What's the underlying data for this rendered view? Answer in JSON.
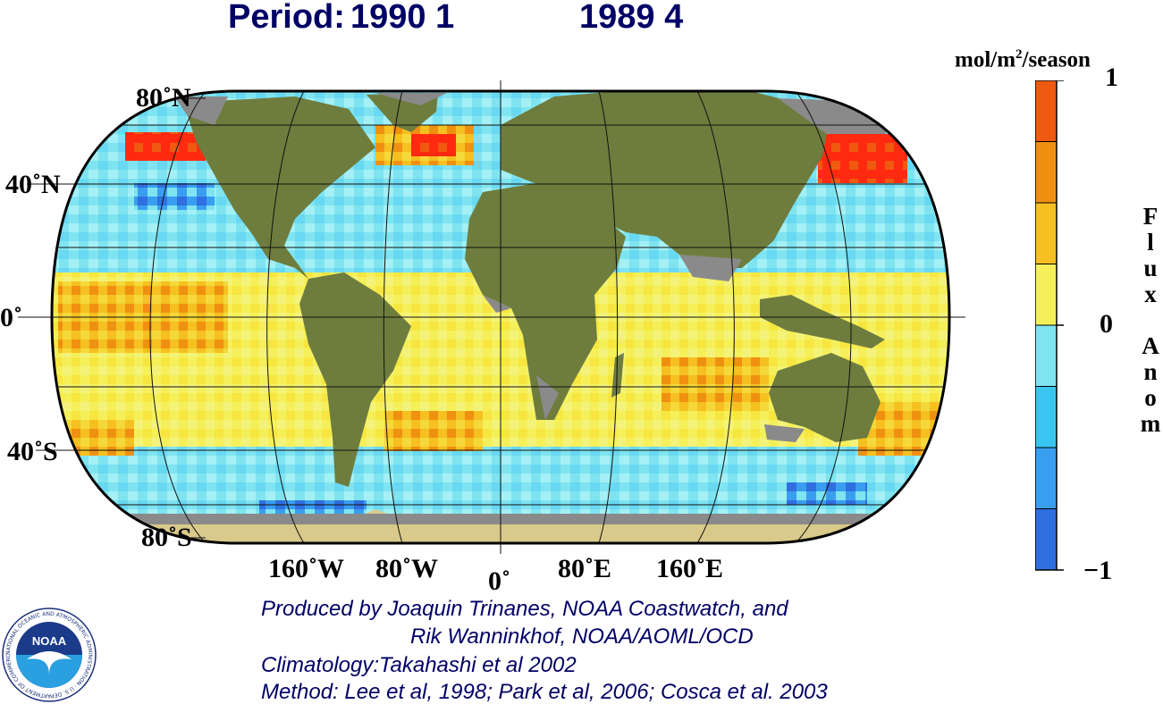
{
  "title": {
    "label": "Period:",
    "period_start": "1990 1",
    "period_end": "1989 4"
  },
  "map": {
    "lat_labels": [
      "80˚N",
      "40˚N",
      "0˚",
      "40˚S",
      "80˚S"
    ],
    "lon_labels": [
      "160˚W",
      "80˚W",
      "0˚",
      "80˚E",
      "160˚E"
    ],
    "colors": {
      "ocean_pos": "#f5f05a",
      "ocean_neg": "#7fe4f0",
      "land": "#6e7d3e",
      "ice": "#d9c98a",
      "missing": "#8a8a8a",
      "hot": "#ff2a10",
      "cold": "#2f6fe0"
    }
  },
  "colorbar": {
    "unit_prefix": "mol/m",
    "unit_superscript": "2",
    "unit_suffix": "/season",
    "max_label": "1",
    "mid_label": "0",
    "min_label": "−1",
    "axis_title": [
      "F",
      "l",
      "u",
      "x",
      "",
      "A",
      "n",
      "o",
      "m"
    ],
    "colors": [
      "#2f6fe0",
      "#3a9ef0",
      "#38c6f0",
      "#7fe4f0",
      "#f5f05a",
      "#f5c020",
      "#f09010",
      "#f05a10"
    ]
  },
  "credits": {
    "line1": "Produced by Joaquin Trinanes, NOAA Coastwatch, and",
    "line2": "Rik Wanninkhof, NOAA/AOML/OCD",
    "line3": "Climatology:Takahashi et al 2002",
    "line4": "Method: Lee et al, 1998; Park et al, 2006; Cosca et al. 2003"
  },
  "logo": {
    "center_text": "NOAA",
    "ring_text": "NATIONAL OCEANIC AND ATMOSPHERIC ADMINISTRATION · U.S. DEPARTMENT OF COMMERCE"
  }
}
